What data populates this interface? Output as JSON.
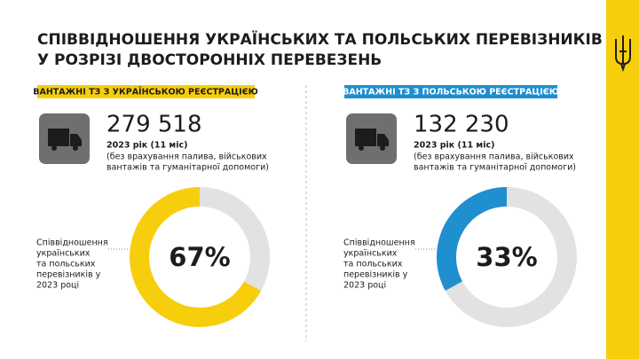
{
  "header": {
    "title_lines": [
      "СПІВВІДНОШЕННЯ УКРАЇНСЬКИХ ТА ПОЛЬСЬКИХ ПЕРЕВІЗНИКІВ",
      "У РОЗРІЗІ ДВОСТОРОННІХ ПЕРЕВЕЗЕНЬ"
    ]
  },
  "chart_data": [
    {
      "type": "donut",
      "title": "ВАНТАЖНІ ТЗ З УКРАЇНСЬКОЮ РЕЄСТРАЦІЄЮ",
      "stat": "279 518",
      "period": "2023 рік (11 міс)",
      "note_lines": [
        "(без врахування палива, військових",
        "вантажів та гуманітарної допомоги)"
      ],
      "annotation_lines": [
        "Співвідношення",
        "українських",
        "та польських",
        "перевізників у",
        "2023 році"
      ],
      "values": [
        67,
        33
      ],
      "value_labels": [
        "67%",
        null
      ],
      "colors": [
        "#f7ce0c",
        "#e2e2e2"
      ]
    },
    {
      "type": "donut",
      "title": "ВАНТАЖНІ ТЗ З ПОЛЬСЬКОЮ РЕЄСТРАЦІЄЮ",
      "stat": "132 230",
      "period": "2023 рік (11 міс)",
      "note_lines": [
        "(без врахування палива, військових",
        "вантажів та гуманітарної допомоги)"
      ],
      "annotation_lines": [
        "Співвідношення",
        "українських",
        "та польських",
        "перевізників у",
        "2023 році"
      ],
      "values": [
        33,
        67
      ],
      "value_labels": [
        "33%",
        null
      ],
      "colors": [
        "#1f8fd0",
        "#e2e2e2"
      ]
    }
  ]
}
